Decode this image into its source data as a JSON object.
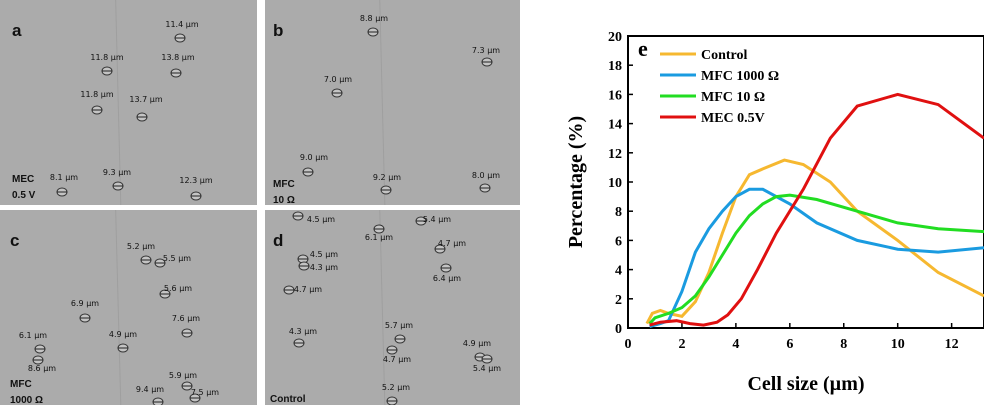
{
  "panels": [
    {
      "letter": "a",
      "condition": [
        "MEC",
        "0.5 V"
      ],
      "sizes": [
        "11.4 µm",
        "11.8 µm",
        "13.8 µm",
        "11.8 µm",
        "13.7 µm",
        "8.1 µm",
        "9.3 µm",
        "12.3 µm"
      ]
    },
    {
      "letter": "b",
      "condition": [
        "MFC",
        "10 Ω"
      ],
      "sizes": [
        "8.8 µm",
        "7.3 µm",
        "7.0 µm",
        "9.0 µm",
        "9.2 µm",
        "8.0 µm"
      ]
    },
    {
      "letter": "c",
      "condition": [
        "MFC",
        "1000 Ω"
      ],
      "sizes": [
        "5.2 µm",
        "5.5 µm",
        "5.6 µm",
        "6.9 µm",
        "7.6 µm",
        "4.9 µm",
        "6.1 µm",
        "8.6 µm",
        "9.4 µm",
        "5.9 µm",
        "7.5 µm"
      ]
    },
    {
      "letter": "d",
      "condition": [
        "Control"
      ],
      "sizes": [
        "4.5 µm",
        "6.1 µm",
        "5.4 µm",
        "4.7 µm",
        "4.5 µm",
        "4.3 µm",
        "6.4 µm",
        "4.7 µm",
        "4.3 µm",
        "5.7 µm",
        "4.7 µm",
        "4.9 µm",
        "5.4 µm",
        "5.2 µm"
      ]
    }
  ],
  "chart_data": {
    "type": "line",
    "title": "e",
    "x_label": "Cell size (µm)",
    "y_label": "Percentage (%)",
    "xlim": [
      0,
      13.2
    ],
    "xticks": [
      0,
      2,
      4,
      6,
      8,
      10,
      12
    ],
    "ylim": [
      0,
      20
    ],
    "yticks": [
      0,
      2,
      4,
      6,
      8,
      10,
      12,
      14,
      16,
      18,
      20
    ],
    "series": [
      {
        "name": "Control",
        "color": "#f6b830",
        "x": [
          0.7,
          0.9,
          1.2,
          1.5,
          2,
          2.5,
          3,
          3.5,
          4,
          4.5,
          5,
          5.8,
          6.5,
          7.5,
          8.5,
          10,
          11.5,
          13.2
        ],
        "values": [
          0.3,
          1.0,
          1.2,
          1.0,
          0.8,
          1.8,
          3.8,
          6.5,
          9,
          10.5,
          10.9,
          11.5,
          11.2,
          10,
          8,
          6,
          3.8,
          2.2
        ]
      },
      {
        "name": "MFC 1000 Ω",
        "color": "#1a9be0",
        "x": [
          0.8,
          1.2,
          1.5,
          2,
          2.5,
          3,
          3.5,
          4,
          4.5,
          5,
          6,
          7,
          8.5,
          10,
          11.5,
          13.2
        ],
        "values": [
          0.1,
          0.3,
          0.5,
          2.5,
          5.2,
          6.8,
          8,
          9,
          9.5,
          9.5,
          8.5,
          7.2,
          6,
          5.4,
          5.2,
          5.5
        ]
      },
      {
        "name": "MFC 10 Ω",
        "color": "#22dd22",
        "x": [
          0.8,
          1,
          1.5,
          2,
          2.5,
          3,
          3.5,
          4,
          4.5,
          5,
          5.5,
          6,
          7,
          8.5,
          10,
          11.5,
          13.2
        ],
        "values": [
          0.3,
          0.7,
          1.0,
          1.4,
          2.2,
          3.5,
          5,
          6.5,
          7.7,
          8.5,
          9,
          9.1,
          8.8,
          8,
          7.2,
          6.8,
          6.6
        ]
      },
      {
        "name": "MEC 0.5V",
        "color": "#e01010",
        "x": [
          0.8,
          1.2,
          1.8,
          2.3,
          2.8,
          3.3,
          3.7,
          4.2,
          4.8,
          5.5,
          6.5,
          7.5,
          8.5,
          10,
          11.5,
          13.2
        ],
        "values": [
          0.2,
          0.4,
          0.5,
          0.3,
          0.2,
          0.4,
          0.9,
          2,
          4,
          6.5,
          9.5,
          13,
          15.2,
          16,
          15.3,
          13
        ]
      }
    ]
  }
}
